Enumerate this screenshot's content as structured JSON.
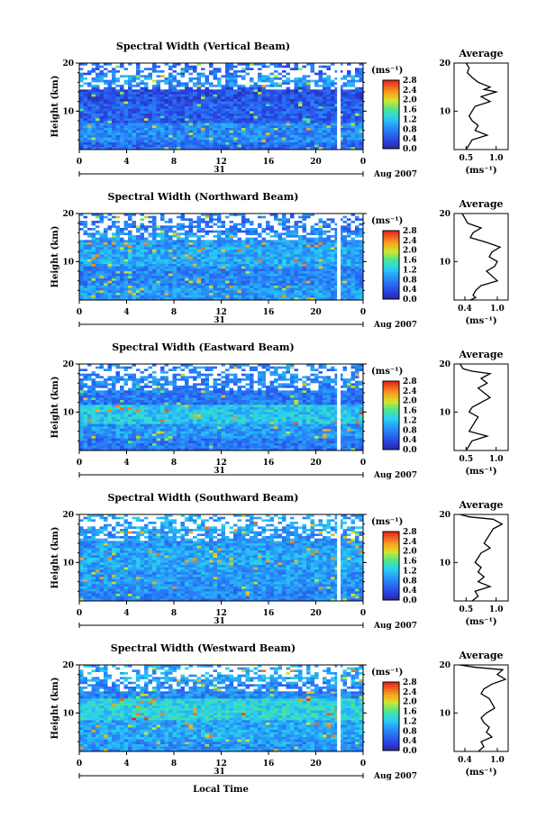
{
  "figure": {
    "xlabel": "Local Time",
    "date_day": "31",
    "date_month_year": "Aug 2007",
    "ylabel": "Height (km)",
    "unit": "(ms⁻¹)",
    "avg_title": "Average",
    "avg_xlabel": "(ms⁻¹)"
  },
  "chart_data": [
    {
      "type": "heatmap",
      "title": "Spectral Width (Vertical Beam)",
      "xlabel": "Local Time",
      "ylabel": "Height (km)",
      "xlim": [
        0,
        24
      ],
      "xticks": [
        "0",
        "4",
        "8",
        "12",
        "16",
        "20",
        "0"
      ],
      "ylim": [
        2,
        20
      ],
      "yticks": [
        "20",
        "10"
      ],
      "colorbar": {
        "label": "(ms⁻¹)",
        "ticks": [
          "2.8",
          "2.4",
          "2.0",
          "1.6",
          "1.2",
          "0.8",
          "0.4",
          "0.0"
        ],
        "range": [
          0,
          2.8
        ]
      },
      "approx_rows": [
        {
          "height_km": 19,
          "value": 0.6
        },
        {
          "height_km": 16,
          "value": 0.9
        },
        {
          "height_km": 14,
          "value": 0.4
        },
        {
          "height_km": 10,
          "value": 0.5
        },
        {
          "height_km": 5,
          "value": 0.8
        },
        {
          "height_km": 2.5,
          "value": 0.6
        }
      ],
      "gap_hours": [
        21.8,
        22.1
      ]
    },
    {
      "type": "line",
      "title": "Average",
      "xlabel": "(ms⁻¹)",
      "ylabel": "Height (km)",
      "xticks": [
        "0.5",
        "1.0"
      ],
      "xlim": [
        0.3,
        1.2
      ],
      "ylim": [
        2,
        20
      ],
      "x": [
        0.5,
        0.55,
        0.52,
        0.6,
        0.7,
        0.9,
        0.8,
        1.0,
        0.75,
        0.9,
        0.65,
        0.6,
        0.55,
        0.6,
        0.7,
        0.65,
        0.85,
        0.6,
        0.55,
        0.5
      ],
      "y": [
        20,
        19,
        18,
        17,
        16,
        15,
        14.5,
        14,
        13,
        12,
        11,
        10,
        9,
        8,
        7,
        6,
        5,
        4,
        3,
        2
      ]
    },
    {
      "type": "heatmap",
      "title": "Spectral Width (Northward Beam)",
      "xlabel": "Local Time",
      "ylabel": "Height (km)",
      "xlim": [
        0,
        24
      ],
      "xticks": [
        "0",
        "4",
        "8",
        "12",
        "16",
        "20",
        "0"
      ],
      "ylim": [
        2,
        20
      ],
      "yticks": [
        "20",
        "10"
      ],
      "colorbar": {
        "label": "(ms⁻¹)",
        "ticks": [
          "2.8",
          "2.4",
          "2.0",
          "1.6",
          "1.2",
          "0.8",
          "0.4",
          "0.0"
        ],
        "range": [
          0,
          2.8
        ]
      },
      "approx_rows": [
        {
          "height_km": 17,
          "value": 0.7
        },
        {
          "height_km": 15,
          "value": 0.9
        },
        {
          "height_km": 11,
          "value": 1.0
        },
        {
          "height_km": 7,
          "value": 0.8
        },
        {
          "height_km": 3,
          "value": 0.9
        }
      ],
      "gap_hours": [
        21.8,
        22.1
      ]
    },
    {
      "type": "line",
      "title": "Average",
      "xlabel": "(ms⁻¹)",
      "ylabel": "Height (km)",
      "xticks": [
        "0.4",
        "1.0"
      ],
      "xlim": [
        0.2,
        1.2
      ],
      "ylim": [
        2,
        20
      ],
      "x": [
        0.35,
        0.4,
        0.45,
        0.7,
        0.55,
        0.5,
        0.8,
        1.05,
        0.9,
        0.85,
        1.0,
        0.95,
        0.8,
        0.9,
        1.0,
        0.7,
        0.6,
        0.55,
        0.6,
        0.5
      ],
      "y": [
        20,
        19,
        18,
        17,
        16,
        15,
        14,
        13,
        12,
        11,
        10,
        9,
        8,
        7,
        6,
        5,
        4,
        3,
        2.5,
        2
      ]
    },
    {
      "type": "heatmap",
      "title": "Spectral Width (Eastward Beam)",
      "xlabel": "Local Time",
      "ylabel": "Height (km)",
      "xlim": [
        0,
        24
      ],
      "xticks": [
        "0",
        "4",
        "8",
        "12",
        "16",
        "20",
        "0"
      ],
      "ylim": [
        2,
        20
      ],
      "yticks": [
        "20",
        "10"
      ],
      "colorbar": {
        "label": "(ms⁻¹)",
        "ticks": [
          "2.8",
          "2.4",
          "2.0",
          "1.6",
          "1.2",
          "0.8",
          "0.4",
          "0.0"
        ],
        "range": [
          0,
          2.8
        ]
      },
      "approx_rows": [
        {
          "height_km": 17,
          "value": 0.8
        },
        {
          "height_km": 14,
          "value": 0.7
        },
        {
          "height_km": 9,
          "value": 1.2
        },
        {
          "height_km": 6,
          "value": 0.9
        },
        {
          "height_km": 3,
          "value": 0.7
        }
      ],
      "gap_hours": [
        21.8,
        22.1
      ]
    },
    {
      "type": "line",
      "title": "Average",
      "xlabel": "(ms⁻¹)",
      "ylabel": "Height (km)",
      "xticks": [
        "0.5",
        "1.0"
      ],
      "xlim": [
        0.3,
        1.2
      ],
      "ylim": [
        2,
        20
      ],
      "x": [
        0.4,
        0.45,
        0.6,
        0.9,
        0.75,
        0.85,
        0.7,
        0.8,
        0.9,
        0.75,
        0.6,
        0.55,
        0.7,
        0.65,
        0.6,
        0.55,
        0.85,
        0.6,
        0.55,
        0.5
      ],
      "y": [
        20,
        19,
        18.5,
        18,
        17,
        16,
        15,
        14,
        13,
        12,
        11,
        10,
        9,
        8,
        7,
        6,
        5,
        4,
        3,
        2
      ]
    },
    {
      "type": "heatmap",
      "title": "Spectral Width (Southward Beam)",
      "xlabel": "Local Time",
      "ylabel": "Height (km)",
      "xlim": [
        0,
        24
      ],
      "xticks": [
        "0",
        "4",
        "8",
        "12",
        "16",
        "20",
        "0"
      ],
      "ylim": [
        2,
        20
      ],
      "yticks": [
        "20",
        "10"
      ],
      "colorbar": {
        "label": "(ms⁻¹)",
        "ticks": [
          "2.8",
          "2.4",
          "2.0",
          "1.6",
          "1.2",
          "0.8",
          "0.4",
          "0.0"
        ],
        "range": [
          0,
          2.8
        ]
      },
      "approx_rows": [
        {
          "height_km": 18,
          "value": 1.0
        },
        {
          "height_km": 15,
          "value": 0.9
        },
        {
          "height_km": 11,
          "value": 1.0
        },
        {
          "height_km": 6,
          "value": 0.9
        },
        {
          "height_km": 3,
          "value": 0.8
        }
      ],
      "gap_hours": [
        21.8,
        22.1
      ]
    },
    {
      "type": "line",
      "title": "Average",
      "xlabel": "(ms⁻¹)",
      "ylabel": "Height (km)",
      "xticks": [
        "0.5",
        "1.0"
      ],
      "xlim": [
        0.3,
        1.2
      ],
      "ylim": [
        2,
        20
      ],
      "x": [
        0.4,
        0.55,
        0.95,
        1.1,
        0.95,
        0.9,
        0.85,
        0.8,
        0.9,
        0.75,
        0.7,
        0.65,
        0.75,
        0.7,
        0.8,
        0.7,
        0.9,
        0.65,
        0.7,
        0.6
      ],
      "y": [
        20,
        19.5,
        19,
        18,
        17,
        16,
        15,
        14,
        13,
        12,
        11,
        10,
        9,
        8,
        7,
        6,
        5,
        4,
        3,
        2
      ]
    },
    {
      "type": "heatmap",
      "title": "Spectral Width (Westward Beam)",
      "xlabel": "Local Time",
      "ylabel": "Height (km)",
      "xlim": [
        0,
        24
      ],
      "xticks": [
        "0",
        "4",
        "8",
        "12",
        "16",
        "20",
        "0"
      ],
      "ylim": [
        2,
        20
      ],
      "yticks": [
        "20",
        "10"
      ],
      "colorbar": {
        "label": "(ms⁻¹)",
        "ticks": [
          "2.8",
          "2.4",
          "2.0",
          "1.6",
          "1.2",
          "0.8",
          "0.4",
          "0.0"
        ],
        "range": [
          0,
          2.8
        ]
      },
      "approx_rows": [
        {
          "height_km": 18,
          "value": 1.0
        },
        {
          "height_km": 15,
          "value": 0.8
        },
        {
          "height_km": 11,
          "value": 1.3
        },
        {
          "height_km": 6,
          "value": 1.0
        },
        {
          "height_km": 3,
          "value": 0.9
        }
      ],
      "gap_hours": [
        21.8,
        22.1
      ]
    },
    {
      "type": "line",
      "title": "Average",
      "xlabel": "(ms⁻¹)",
      "ylabel": "Height (km)",
      "xticks": [
        "0.4",
        "1.0"
      ],
      "xlim": [
        0.2,
        1.2
      ],
      "ylim": [
        2,
        20
      ],
      "x": [
        0.3,
        0.6,
        1.1,
        1.0,
        1.15,
        0.9,
        0.75,
        0.7,
        0.85,
        0.9,
        0.95,
        0.8,
        0.7,
        0.75,
        0.85,
        0.8,
        0.9,
        0.7,
        0.75,
        0.65
      ],
      "y": [
        20,
        19.5,
        19,
        18,
        17,
        16,
        15,
        14,
        13,
        12,
        11,
        10,
        9,
        8,
        7,
        6,
        5,
        4,
        3,
        2
      ]
    }
  ]
}
